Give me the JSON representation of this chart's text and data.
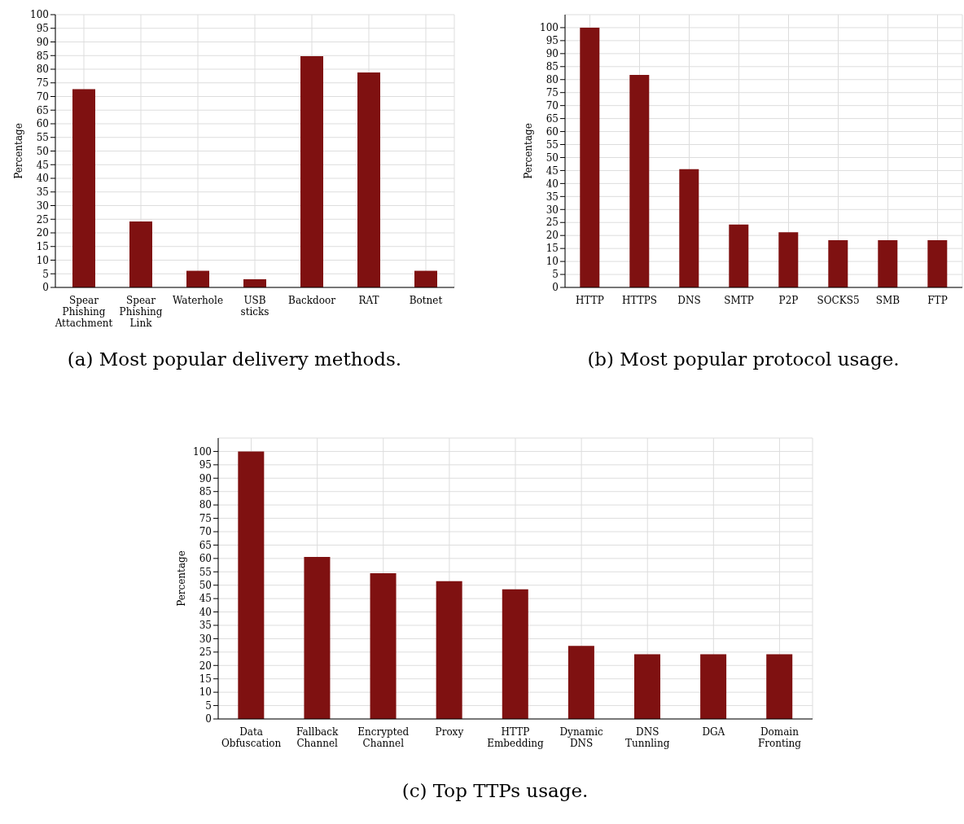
{
  "chart_data": [
    {
      "type": "bar",
      "title": "(a) Most popular delivery methods.",
      "ylabel": "Percentage",
      "categories": [
        "Spear Phishing Attachment",
        "Spear Phishing Link",
        "Waterhole",
        "USB sticks",
        "Backdoor",
        "RAT",
        "Botnet"
      ],
      "values": [
        72.7,
        24.2,
        6.1,
        3.0,
        84.8,
        78.8,
        6.1
      ],
      "color": "#7f1111",
      "ylim": [
        0,
        100
      ],
      "yticks": [
        0,
        5,
        10,
        15,
        20,
        25,
        30,
        35,
        40,
        45,
        50,
        55,
        60,
        65,
        70,
        75,
        80,
        85,
        90,
        95,
        100
      ],
      "grid": true
    },
    {
      "type": "bar",
      "title": "(b) Most popular protocol usage.",
      "ylabel": "Percentage",
      "categories": [
        "HTTP",
        "HTTPS",
        "DNS",
        "SMTP",
        "P2P",
        "SOCKS5",
        "SMB",
        "FTP"
      ],
      "values": [
        100,
        81.8,
        45.5,
        24.2,
        21.2,
        18.2,
        18.2,
        18.2
      ],
      "color": "#7f1111",
      "ylim": [
        0,
        105
      ],
      "yticks": [
        0,
        5,
        10,
        15,
        20,
        25,
        30,
        35,
        40,
        45,
        50,
        55,
        60,
        65,
        70,
        75,
        80,
        85,
        90,
        95,
        100
      ],
      "grid": true
    },
    {
      "type": "bar",
      "title": "(c) Top TTPs usage.",
      "ylabel": "Percentage",
      "categories": [
        "Data Obfuscation",
        "Fallback Channel",
        "Encrypted Channel",
        "Proxy",
        "HTTP Embedding",
        "Dynamic DNS",
        "DNS Tunnling",
        "DGA",
        "Domain Fronting"
      ],
      "values": [
        100,
        60.6,
        54.5,
        51.5,
        48.5,
        27.3,
        24.2,
        24.2,
        24.2
      ],
      "color": "#7f1111",
      "ylim": [
        0,
        105
      ],
      "yticks": [
        0,
        5,
        10,
        15,
        20,
        25,
        30,
        35,
        40,
        45,
        50,
        55,
        60,
        65,
        70,
        75,
        80,
        85,
        90,
        95,
        100
      ],
      "grid": true
    }
  ]
}
